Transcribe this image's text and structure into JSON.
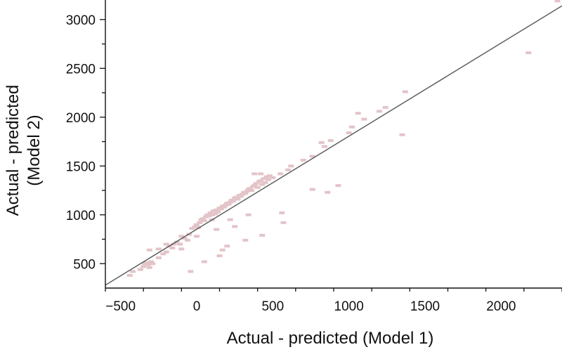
{
  "chart_data": {
    "type": "scatter",
    "title": "",
    "xlabel": "Actual - predicted (Model 1)",
    "ylabel_lines": [
      "Actual - predicted",
      "(Model 2)"
    ],
    "xlim": [
      -600,
      2400
    ],
    "ylim": [
      250,
      3200
    ],
    "x_ticks": [
      -500,
      0,
      500,
      1000,
      1500,
      2000
    ],
    "x_tick_labels": [
      "−500",
      "0",
      "500",
      "1000",
      "1500",
      "2000"
    ],
    "y_ticks": [
      500,
      1000,
      1500,
      2000,
      2500,
      3000
    ],
    "y_tick_labels": [
      "500",
      "1000",
      "1500",
      "2000",
      "2500",
      "3000"
    ],
    "grid": false,
    "legend": "none",
    "point_color": "#e3c4c8",
    "reference_line": {
      "x": [
        -600,
        2400
      ],
      "y": [
        280,
        3140
      ],
      "color": "#555555"
    },
    "points": [
      {
        "x": -440,
        "y": 380
      },
      {
        "x": -420,
        "y": 420
      },
      {
        "x": -370,
        "y": 440
      },
      {
        "x": -350,
        "y": 470
      },
      {
        "x": -340,
        "y": 500
      },
      {
        "x": -330,
        "y": 510
      },
      {
        "x": -320,
        "y": 490
      },
      {
        "x": -310,
        "y": 460
      },
      {
        "x": -300,
        "y": 520
      },
      {
        "x": -290,
        "y": 500
      },
      {
        "x": -310,
        "y": 640
      },
      {
        "x": -250,
        "y": 560
      },
      {
        "x": -220,
        "y": 600
      },
      {
        "x": -200,
        "y": 620
      },
      {
        "x": -180,
        "y": 680
      },
      {
        "x": -160,
        "y": 660
      },
      {
        "x": -150,
        "y": 700
      },
      {
        "x": -130,
        "y": 720
      },
      {
        "x": -110,
        "y": 700
      },
      {
        "x": -100,
        "y": 780
      },
      {
        "x": -80,
        "y": 760
      },
      {
        "x": -60,
        "y": 740
      },
      {
        "x": -200,
        "y": 700
      },
      {
        "x": -50,
        "y": 800
      },
      {
        "x": -30,
        "y": 860
      },
      {
        "x": -10,
        "y": 880
      },
      {
        "x": 0,
        "y": 900
      },
      {
        "x": 10,
        "y": 870
      },
      {
        "x": 20,
        "y": 920
      },
      {
        "x": 30,
        "y": 950
      },
      {
        "x": 40,
        "y": 960
      },
      {
        "x": 50,
        "y": 940
      },
      {
        "x": 60,
        "y": 980
      },
      {
        "x": 70,
        "y": 1000
      },
      {
        "x": 80,
        "y": 990
      },
      {
        "x": 90,
        "y": 1020
      },
      {
        "x": 100,
        "y": 1000
      },
      {
        "x": 110,
        "y": 1040
      },
      {
        "x": 120,
        "y": 1010
      },
      {
        "x": 130,
        "y": 1050
      },
      {
        "x": 140,
        "y": 1030
      },
      {
        "x": 150,
        "y": 1070
      },
      {
        "x": 160,
        "y": 1060
      },
      {
        "x": 170,
        "y": 1090
      },
      {
        "x": 180,
        "y": 1080
      },
      {
        "x": 190,
        "y": 1100
      },
      {
        "x": 200,
        "y": 1120
      },
      {
        "x": 210,
        "y": 1110
      },
      {
        "x": 220,
        "y": 1130
      },
      {
        "x": 230,
        "y": 1150
      },
      {
        "x": 240,
        "y": 1140
      },
      {
        "x": 250,
        "y": 1170
      },
      {
        "x": 260,
        "y": 1180
      },
      {
        "x": 270,
        "y": 1160
      },
      {
        "x": 280,
        "y": 1200
      },
      {
        "x": 290,
        "y": 1190
      },
      {
        "x": 300,
        "y": 1210
      },
      {
        "x": 310,
        "y": 1230
      },
      {
        "x": 320,
        "y": 1220
      },
      {
        "x": 330,
        "y": 1240
      },
      {
        "x": 340,
        "y": 1260
      },
      {
        "x": 350,
        "y": 1270
      },
      {
        "x": 360,
        "y": 1250
      },
      {
        "x": 370,
        "y": 1290
      },
      {
        "x": 380,
        "y": 1300
      },
      {
        "x": 390,
        "y": 1320
      },
      {
        "x": 400,
        "y": 1280
      },
      {
        "x": 410,
        "y": 1340
      },
      {
        "x": 420,
        "y": 1350
      },
      {
        "x": 430,
        "y": 1310
      },
      {
        "x": 440,
        "y": 1370
      },
      {
        "x": 450,
        "y": 1330
      },
      {
        "x": 460,
        "y": 1390
      },
      {
        "x": 470,
        "y": 1360
      },
      {
        "x": 480,
        "y": 1400
      },
      {
        "x": 380,
        "y": 1420
      },
      {
        "x": 420,
        "y": 1420
      },
      {
        "x": 500,
        "y": 1380
      },
      {
        "x": 550,
        "y": 1420
      },
      {
        "x": 600,
        "y": 1460
      },
      {
        "x": 620,
        "y": 1500
      },
      {
        "x": 700,
        "y": 1560
      },
      {
        "x": 760,
        "y": 1600
      },
      {
        "x": 820,
        "y": 1740
      },
      {
        "x": 840,
        "y": 1700
      },
      {
        "x": 880,
        "y": 1760
      },
      {
        "x": 1000,
        "y": 1840
      },
      {
        "x": 1020,
        "y": 1900
      },
      {
        "x": 1060,
        "y": 2040
      },
      {
        "x": 1100,
        "y": 1980
      },
      {
        "x": 1200,
        "y": 2060
      },
      {
        "x": 1240,
        "y": 2100
      },
      {
        "x": 1350,
        "y": 1820
      },
      {
        "x": 1370,
        "y": 2260
      },
      {
        "x": 2180,
        "y": 2660
      },
      {
        "x": 2370,
        "y": 3190
      },
      {
        "x": -40,
        "y": 420
      },
      {
        "x": 50,
        "y": 520
      },
      {
        "x": 150,
        "y": 580
      },
      {
        "x": 170,
        "y": 640
      },
      {
        "x": 200,
        "y": 680
      },
      {
        "x": 320,
        "y": 740
      },
      {
        "x": 430,
        "y": 790
      },
      {
        "x": 130,
        "y": 850
      },
      {
        "x": 250,
        "y": 880
      },
      {
        "x": 560,
        "y": 1020
      },
      {
        "x": 570,
        "y": 920
      },
      {
        "x": 760,
        "y": 1260
      },
      {
        "x": 860,
        "y": 1230
      },
      {
        "x": 930,
        "y": 1300
      },
      {
        "x": 220,
        "y": 950
      },
      {
        "x": 340,
        "y": 1000
      },
      {
        "x": 100,
        "y": 950
      },
      {
        "x": 0,
        "y": 780
      },
      {
        "x": -100,
        "y": 650
      },
      {
        "x": -250,
        "y": 650
      }
    ]
  }
}
